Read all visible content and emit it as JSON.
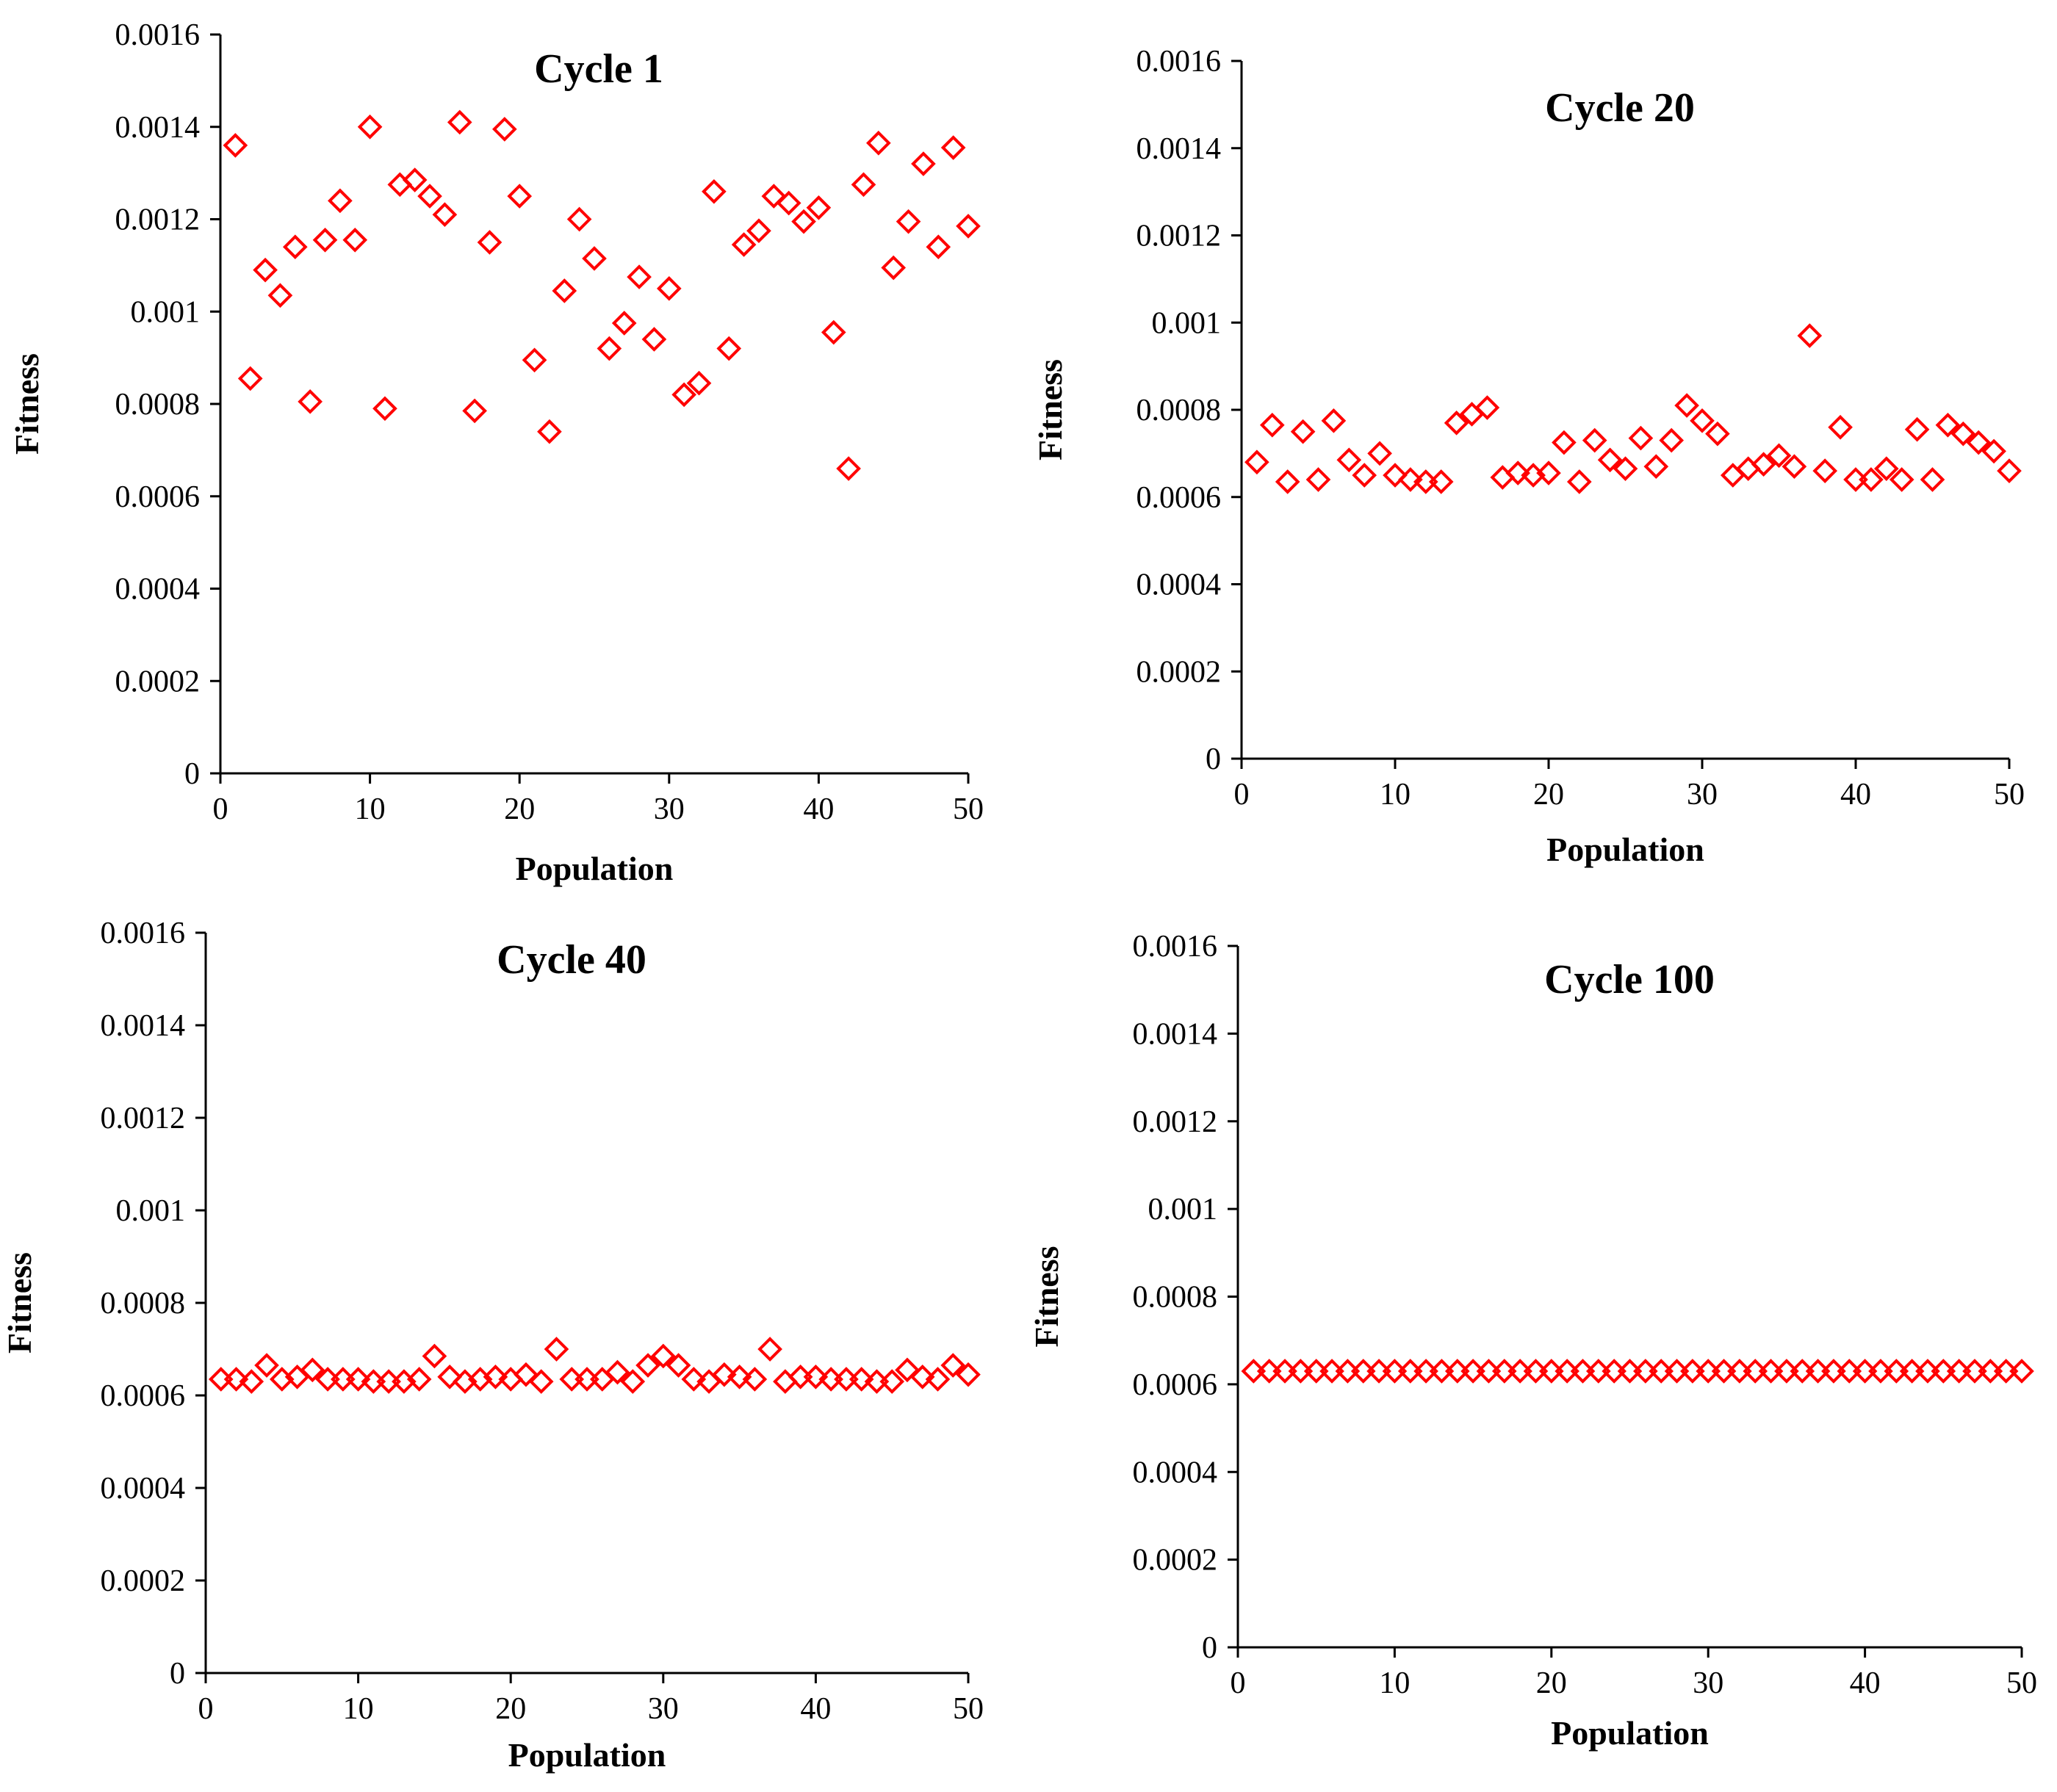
{
  "chart_data": [
    {
      "type": "scatter",
      "title": "Cycle 1",
      "xlabel": "Population",
      "ylabel": "Fitness",
      "xlim": [
        0,
        50
      ],
      "ylim": [
        0,
        0.0016
      ],
      "xticks": [
        0,
        10,
        20,
        30,
        40,
        50
      ],
      "yticks": [
        "0",
        "0.0002",
        "0.0004",
        "0.0006",
        "0.0008",
        "0.001",
        "0.0012",
        "0.0014",
        "0.0016"
      ],
      "marker": "diamond",
      "color": "#ff0000",
      "series": [
        {
          "name": "Fitness",
          "x": [
            1,
            2,
            3,
            4,
            5,
            6,
            7,
            8,
            9,
            10,
            11,
            12,
            13,
            14,
            15,
            16,
            17,
            18,
            19,
            20,
            21,
            22,
            23,
            24,
            25,
            26,
            27,
            28,
            29,
            30,
            31,
            32,
            33,
            34,
            35,
            36,
            37,
            38,
            39,
            40,
            41,
            42,
            43,
            44,
            45,
            46,
            47,
            48,
            49,
            50
          ],
          "y": [
            0.00136,
            0.000855,
            0.00109,
            0.001035,
            0.00114,
            0.000805,
            0.001155,
            0.00124,
            0.001155,
            0.0014,
            0.00079,
            0.001275,
            0.001285,
            0.00125,
            0.00121,
            0.00141,
            0.000785,
            0.00115,
            0.001395,
            0.00125,
            0.000895,
            0.00074,
            0.001045,
            0.0012,
            0.001115,
            0.00092,
            0.000975,
            0.001075,
            0.00094,
            0.00105,
            0.00082,
            0.000845,
            0.00126,
            0.00092,
            0.001145,
            0.001175,
            0.00125,
            0.001235,
            0.001195,
            0.001225,
            0.000955,
            0.00066,
            0.001275,
            0.001365,
            0.001095,
            0.001195,
            0.00132,
            0.00114,
            0.001355,
            0.001185
          ]
        }
      ]
    },
    {
      "type": "scatter",
      "title": "Cycle 20",
      "xlabel": "Population",
      "ylabel": "Fitness",
      "xlim": [
        0,
        50
      ],
      "ylim": [
        0,
        0.0016
      ],
      "xticks": [
        0,
        10,
        20,
        30,
        40,
        50
      ],
      "yticks": [
        "0",
        "0.0002",
        "0.0004",
        "0.0006",
        "0.0008",
        "0.001",
        "0.0012",
        "0.0014",
        "0.0016"
      ],
      "marker": "diamond",
      "color": "#ff0000",
      "series": [
        {
          "name": "Fitness",
          "x": [
            1,
            2,
            3,
            4,
            5,
            6,
            7,
            8,
            9,
            10,
            11,
            12,
            13,
            14,
            15,
            16,
            17,
            18,
            19,
            20,
            21,
            22,
            23,
            24,
            25,
            26,
            27,
            28,
            29,
            30,
            31,
            32,
            33,
            34,
            35,
            36,
            37,
            38,
            39,
            40,
            41,
            42,
            43,
            44,
            45,
            46,
            47,
            48,
            49,
            50
          ],
          "y": [
            0.00068,
            0.000765,
            0.000635,
            0.00075,
            0.00064,
            0.000775,
            0.000685,
            0.00065,
            0.0007,
            0.00065,
            0.00064,
            0.000635,
            0.000635,
            0.00077,
            0.00079,
            0.000805,
            0.000645,
            0.000655,
            0.00065,
            0.000655,
            0.000725,
            0.000635,
            0.00073,
            0.000685,
            0.000665,
            0.000735,
            0.00067,
            0.00073,
            0.00081,
            0.000775,
            0.000745,
            0.00065,
            0.000665,
            0.000675,
            0.000695,
            0.00067,
            0.00097,
            0.00066,
            0.00076,
            0.00064,
            0.00064,
            0.000665,
            0.00064,
            0.000755,
            0.00064,
            0.000765,
            0.000745,
            0.000725,
            0.000705,
            0.00066
          ]
        }
      ]
    },
    {
      "type": "scatter",
      "title": "Cycle 40",
      "xlabel": "Population",
      "ylabel": "Fitness",
      "xlim": [
        0,
        50
      ],
      "ylim": [
        0,
        0.0016
      ],
      "xticks": [
        0,
        10,
        20,
        30,
        40,
        50
      ],
      "yticks": [
        "0",
        "0.0002",
        "0.0004",
        "0.0006",
        "0.0008",
        "0.001",
        "0.0012",
        "0.0014",
        "0.0016"
      ],
      "marker": "diamond",
      "color": "#ff0000",
      "series": [
        {
          "name": "Fitness",
          "x": [
            1,
            2,
            3,
            4,
            5,
            6,
            7,
            8,
            9,
            10,
            11,
            12,
            13,
            14,
            15,
            16,
            17,
            18,
            19,
            20,
            21,
            22,
            23,
            24,
            25,
            26,
            27,
            28,
            29,
            30,
            31,
            32,
            33,
            34,
            35,
            36,
            37,
            38,
            39,
            40,
            41,
            42,
            43,
            44,
            45,
            46,
            47,
            48,
            49,
            50
          ],
          "y": [
            0.000635,
            0.000635,
            0.00063,
            0.000665,
            0.000635,
            0.00064,
            0.000655,
            0.000635,
            0.000635,
            0.000635,
            0.00063,
            0.00063,
            0.00063,
            0.000635,
            0.000685,
            0.00064,
            0.00063,
            0.000635,
            0.00064,
            0.000635,
            0.000645,
            0.00063,
            0.0007,
            0.000635,
            0.000635,
            0.000635,
            0.00065,
            0.00063,
            0.000665,
            0.000685,
            0.000665,
            0.000635,
            0.00063,
            0.000645,
            0.00064,
            0.000635,
            0.0007,
            0.00063,
            0.00064,
            0.00064,
            0.000635,
            0.000635,
            0.000635,
            0.00063,
            0.00063,
            0.000655,
            0.00064,
            0.000635,
            0.000665,
            0.000645
          ]
        }
      ]
    },
    {
      "type": "scatter",
      "title": "Cycle 100",
      "xlabel": "Population",
      "ylabel": "Fitness",
      "xlim": [
        0,
        50
      ],
      "ylim": [
        0,
        0.0016
      ],
      "xticks": [
        0,
        10,
        20,
        30,
        40,
        50
      ],
      "yticks": [
        "0",
        "0.0002",
        "0.0004",
        "0.0006",
        "0.0008",
        "0.001",
        "0.0012",
        "0.0014",
        "0.0016"
      ],
      "marker": "diamond",
      "color": "#ff0000",
      "series": [
        {
          "name": "Fitness",
          "x": [
            1,
            2,
            3,
            4,
            5,
            6,
            7,
            8,
            9,
            10,
            11,
            12,
            13,
            14,
            15,
            16,
            17,
            18,
            19,
            20,
            21,
            22,
            23,
            24,
            25,
            26,
            27,
            28,
            29,
            30,
            31,
            32,
            33,
            34,
            35,
            36,
            37,
            38,
            39,
            40,
            41,
            42,
            43,
            44,
            45,
            46,
            47,
            48,
            49,
            50
          ],
          "y": [
            0.00063,
            0.00063,
            0.00063,
            0.00063,
            0.00063,
            0.00063,
            0.00063,
            0.00063,
            0.00063,
            0.00063,
            0.00063,
            0.00063,
            0.00063,
            0.00063,
            0.00063,
            0.00063,
            0.00063,
            0.00063,
            0.00063,
            0.00063,
            0.00063,
            0.00063,
            0.00063,
            0.00063,
            0.00063,
            0.00063,
            0.00063,
            0.00063,
            0.00063,
            0.00063,
            0.00063,
            0.00063,
            0.00063,
            0.00063,
            0.00063,
            0.00063,
            0.00063,
            0.00063,
            0.00063,
            0.00063,
            0.00063,
            0.00063,
            0.00063,
            0.00063,
            0.00063,
            0.00063,
            0.00063,
            0.00063,
            0.00063,
            0.00063
          ]
        }
      ]
    }
  ]
}
